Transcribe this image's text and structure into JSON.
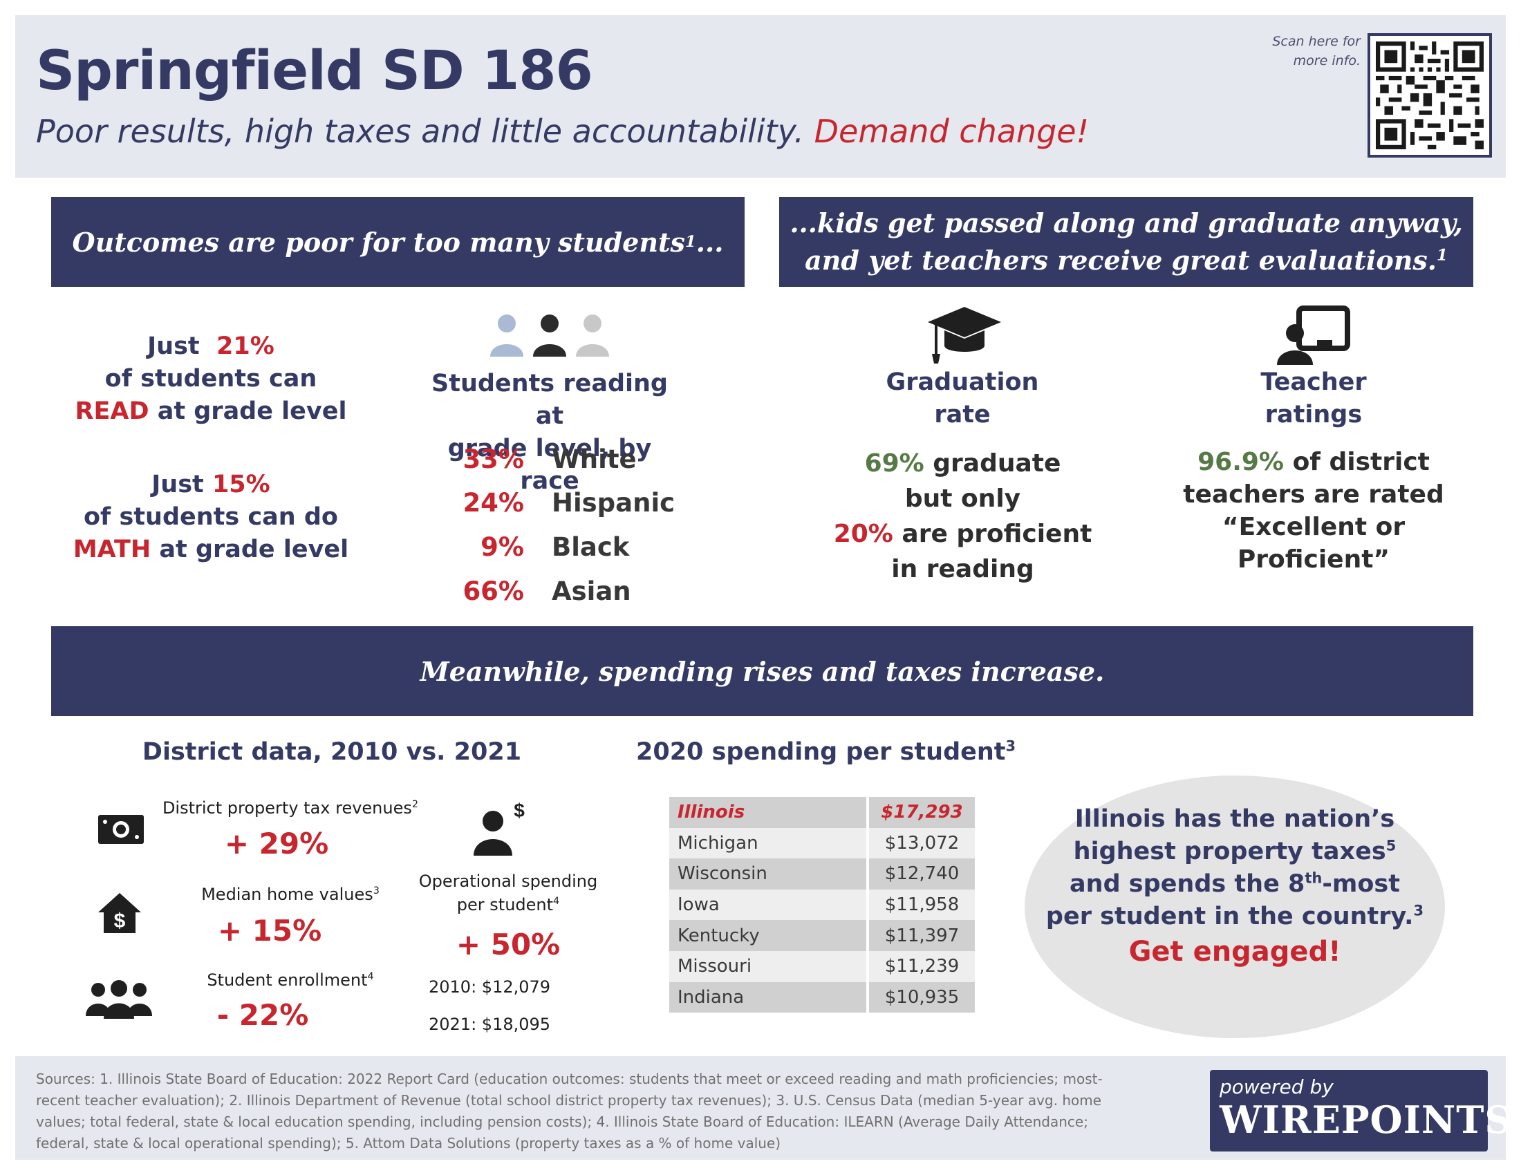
{
  "header": {
    "title": "Springfield SD 186",
    "subtitle_main": "Poor results, high taxes and little accountability.",
    "subtitle_emphasis": "Demand change!",
    "scan_text": "Scan here for more info.",
    "qr_icon": "qr-code-icon"
  },
  "outcomes": {
    "banner": "Outcomes are poor for too many students",
    "banner_sup": "1",
    "banner_tail": "...",
    "read": {
      "just": "Just",
      "pct": "21%",
      "line2": "of students can",
      "keyword": "READ",
      "line3": "at grade level"
    },
    "math": {
      "just": "Just",
      "pct": "15%",
      "line2": "of students can do",
      "keyword": "MATH",
      "line3": "at grade level"
    },
    "race_heading_1": "Students reading at",
    "race_heading_2": "grade level, by race",
    "race": [
      {
        "pct": "33%",
        "label": "White"
      },
      {
        "pct": "24%",
        "label": "Hispanic"
      },
      {
        "pct": "9%",
        "label": "Black"
      },
      {
        "pct": "66%",
        "label": "Asian"
      }
    ]
  },
  "passed_along": {
    "banner_line1": "...kids get passed along and graduate anyway,",
    "banner_line2": "and yet teachers receive great evaluations.",
    "banner_sup": "1",
    "graduation": {
      "head1": "Graduation",
      "head2": "rate",
      "pct1": "69%",
      "text1": "graduate",
      "text2": "but only",
      "pct2": "20%",
      "text3": "are proficient",
      "text4": "in reading"
    },
    "teachers": {
      "head1": "Teacher",
      "head2": "ratings",
      "pct": "96.9%",
      "text1": "of district",
      "text2": "teachers are rated",
      "text3": "“Excellent or",
      "text4": "Proficient”"
    }
  },
  "spending": {
    "banner": "Meanwhile, spending rises and taxes increase.",
    "district_heading": "District data, 2010 vs. 2021",
    "property_tax_label": "District property tax revenues",
    "property_tax_sup": "2",
    "property_tax_value": "+ 29%",
    "home_label": "Median home values",
    "home_sup": "3",
    "home_value": "+ 15%",
    "enrollment_label": "Student enrollment",
    "enrollment_sup": "4",
    "enrollment_value": "- 22%",
    "op_label_1": "Operational spending",
    "op_label_2": "per student",
    "op_sup": "4",
    "op_value": "+ 50%",
    "op_2010": "2010: $12,079",
    "op_2021": "2021: $18,095",
    "table_heading": "2020 spending per student",
    "table_sup": "3",
    "table": [
      {
        "state": "Illinois",
        "amount": "$17,293"
      },
      {
        "state": "Michigan",
        "amount": "$13,072"
      },
      {
        "state": "Wisconsin",
        "amount": "$12,740"
      },
      {
        "state": "Iowa",
        "amount": "$11,958"
      },
      {
        "state": "Kentucky",
        "amount": "$11,397"
      },
      {
        "state": "Missouri",
        "amount": "$11,239"
      },
      {
        "state": "Indiana",
        "amount": "$10,935"
      }
    ],
    "callout_line1": "Illinois has the nation’s",
    "callout_line2": "highest property taxes",
    "callout_sup1": "5",
    "callout_line3a": "and spends the 8",
    "callout_th": "th",
    "callout_line3b": "-most",
    "callout_line4": "per student in the country.",
    "callout_sup2": "3",
    "callout_cta": "Get engaged!"
  },
  "footer": {
    "sources": "Sources: 1. Illinois State Board of Education: 2022 Report Card (education outcomes: students that meet or exceed reading and math proficiencies; most-recent teacher evaluation); 2. Illinois Department of Revenue (total school district property tax revenues); 3. U.S. Census Data (median 5-year avg. home values; total federal, state & local education spending, including pension costs); 4. Illinois State Board of Education: ILEARN (Average Daily Attendance; federal, state & local operational spending); 5. Attom Data Solutions (property taxes as a % of home value)",
    "badge_small": "powered by",
    "badge_big": "WIREPOINTS"
  },
  "colors": {
    "navy": "#343a64",
    "red": "#c8262e",
    "green": "#557a46",
    "panel": "#e6e8ef"
  }
}
